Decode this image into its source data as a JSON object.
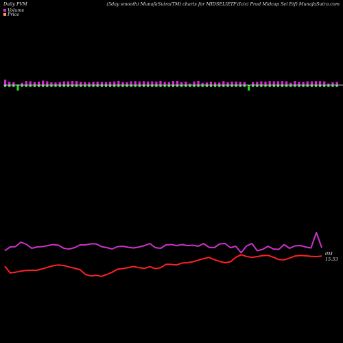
{
  "header": {
    "left": "Daily PVM",
    "center": "(5day smooth) MunafaSutra(TM) charts for MIDSELIETF",
    "right": "(Icici  Prud Midcap Sel Etf) MunafaSutra.com"
  },
  "legend": [
    {
      "label": "Volume",
      "color": "#cc33cc"
    },
    {
      "label": "Price",
      "color": "#ff9966"
    }
  ],
  "colors": {
    "background": "#000000",
    "volume_up": "#dd22dd",
    "volume_down": "#22dd22",
    "volume_line": "#cc33cc",
    "price_line": "#ff2222",
    "baseline": "#ffffff"
  },
  "chart_data": {
    "type": "line",
    "title": "(5day smooth) MunafaSutra(TM) charts for MIDSELIETF",
    "grid": false,
    "legend_position": "top-left",
    "series": [
      {
        "name": "Volume",
        "values": [
          5.5,
          3.2,
          2.8,
          0.5,
          2.2,
          4.0,
          3.8,
          3.0,
          3.4,
          4.5,
          3.8,
          2.8,
          2.6,
          3.0,
          3.8,
          3.8,
          4.1,
          4.1,
          3.3,
          3.0,
          2.6,
          3.3,
          3.4,
          3.1,
          2.9,
          3.2,
          3.6,
          4.2,
          3.0,
          2.8,
          3.8,
          3.9,
          3.6,
          3.9,
          3.6,
          3.7,
          3.4,
          4.2,
          3.1,
          3.0,
          4.1,
          4.2,
          3.0,
          3.4,
          1.5,
          3.5,
          4.2,
          2.1,
          2.5,
          3.4,
          2.6,
          2.5,
          3.9,
          2.8,
          3.5,
          3.6,
          3.2,
          2.9,
          -1.0,
          3.0,
          3.2,
          3.7,
          3.4,
          4.0,
          3.8,
          3.8,
          4.0,
          3.8,
          2.2,
          4.1,
          3.1,
          3.3,
          3.7,
          3.7,
          4.0,
          4.0,
          3.7,
          1.5,
          2.8,
          3.2
        ]
      },
      {
        "name": "Price",
        "values": [
          5.2,
          0.9,
          1.4,
          2.1,
          2.5,
          2.6,
          2.6,
          3.5,
          4.5,
          5.5,
          6.0,
          5.6,
          4.7,
          3.9,
          3.0,
          0.0,
          -1.0,
          -0.6,
          -1.2,
          0.0,
          1.4,
          3.3,
          3.7,
          4.3,
          5.0,
          4.2,
          3.8,
          4.9,
          3.6,
          4.2,
          6.4,
          6.3,
          6.0,
          7.2,
          7.4,
          8.0,
          9.0,
          10.0,
          10.8,
          9.4,
          8.2,
          7.4,
          8.0,
          10.8,
          12.5,
          11.4,
          10.8,
          11.3,
          11.9,
          12.1,
          10.9,
          9.4,
          9.2,
          10.3,
          11.6,
          12.0,
          11.8,
          11.5,
          11.3,
          11.6
        ]
      }
    ],
    "annotations": [
      "0M",
      "15.53"
    ]
  }
}
